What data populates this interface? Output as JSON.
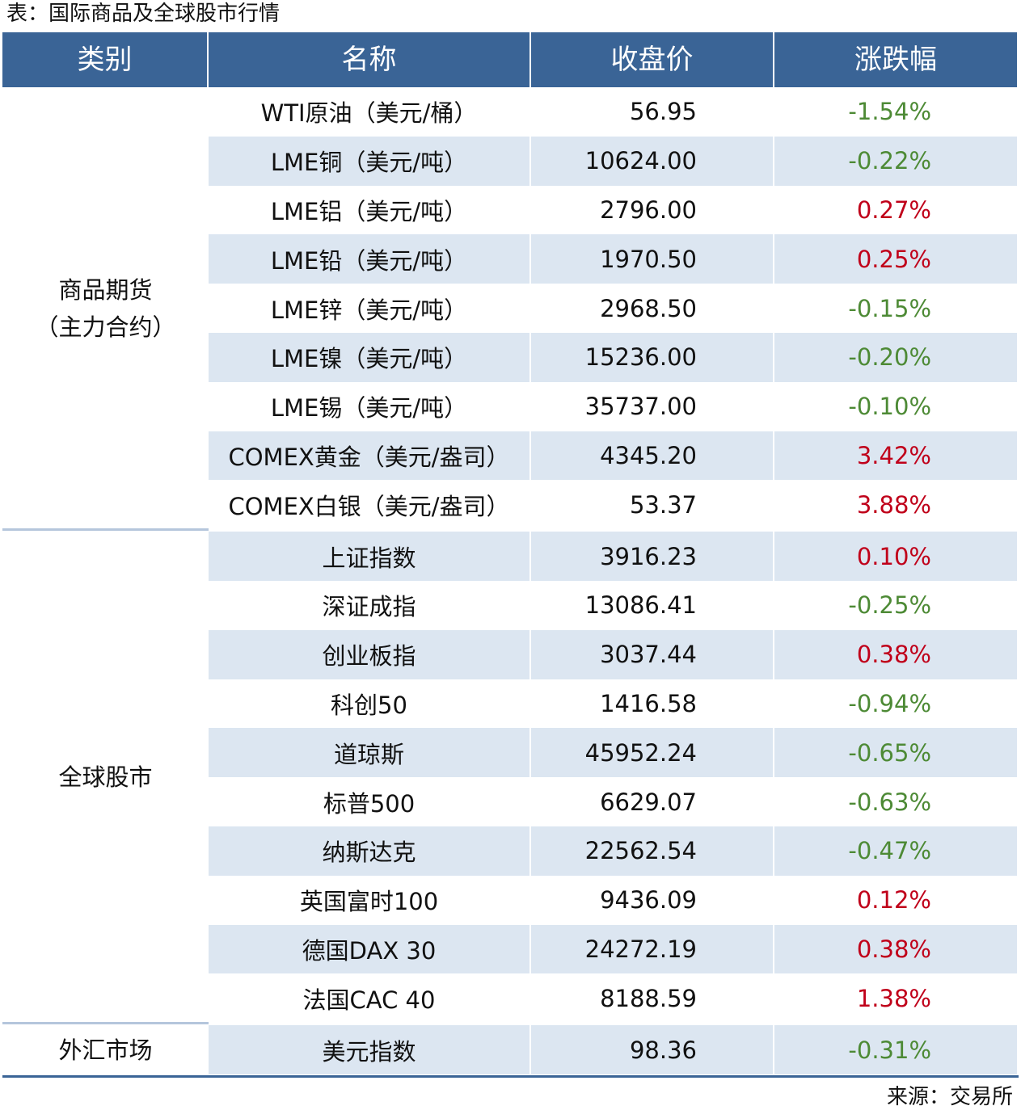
{
  "title": "表：国际商品及全球股市行情",
  "table": {
    "header": [
      "类别",
      "名称",
      "收盘价",
      "涨跌幅"
    ],
    "groups": [
      {
        "category": [
          "商品期货",
          "（主力合约）"
        ],
        "rows": [
          [
            "WTI原油（美元/桶）",
            "56.95",
            "-1.54%"
          ],
          [
            "LME铜（美元/吨）",
            "10624.00",
            "-0.22%"
          ],
          [
            "LME铝（美元/吨）",
            "2796.00",
            "0.27%"
          ],
          [
            "LME铅（美元/吨）",
            "1970.50",
            "0.25%"
          ],
          [
            "LME锌（美元/吨）",
            "2968.50",
            "-0.15%"
          ],
          [
            "LME镍（美元/吨）",
            "15236.00",
            "-0.20%"
          ],
          [
            "LME锡（美元/吨）",
            "35737.00",
            "-0.10%"
          ],
          [
            "COMEX黄金（美元/盎司）",
            "4345.20",
            "3.42%"
          ],
          [
            "COMEX白银（美元/盎司）",
            "53.37",
            "3.88%"
          ]
        ]
      },
      {
        "category": [
          "全球股市"
        ],
        "rows": [
          [
            "上证指数",
            "3916.23",
            "0.10%"
          ],
          [
            "深证成指",
            "13086.41",
            "-0.25%"
          ],
          [
            "创业板指",
            "3037.44",
            "0.38%"
          ],
          [
            "科创50",
            "1416.58",
            "-0.94%"
          ],
          [
            "道琼斯",
            "45952.24",
            "-0.65%"
          ],
          [
            "标普500",
            "6629.07",
            "-0.63%"
          ],
          [
            "纳斯达克",
            "22562.54",
            "-0.47%"
          ],
          [
            "英国富时100",
            "9436.09",
            "0.12%"
          ],
          [
            "德国DAX 30",
            "24272.19",
            "0.38%"
          ],
          [
            "法国CAC 40",
            "8188.59",
            "1.38%"
          ]
        ]
      },
      {
        "category": [
          "外汇市场"
        ],
        "rows": [
          [
            "美元指数",
            "98.36",
            "-0.31%"
          ]
        ]
      }
    ]
  },
  "source": "来源：交易所"
}
